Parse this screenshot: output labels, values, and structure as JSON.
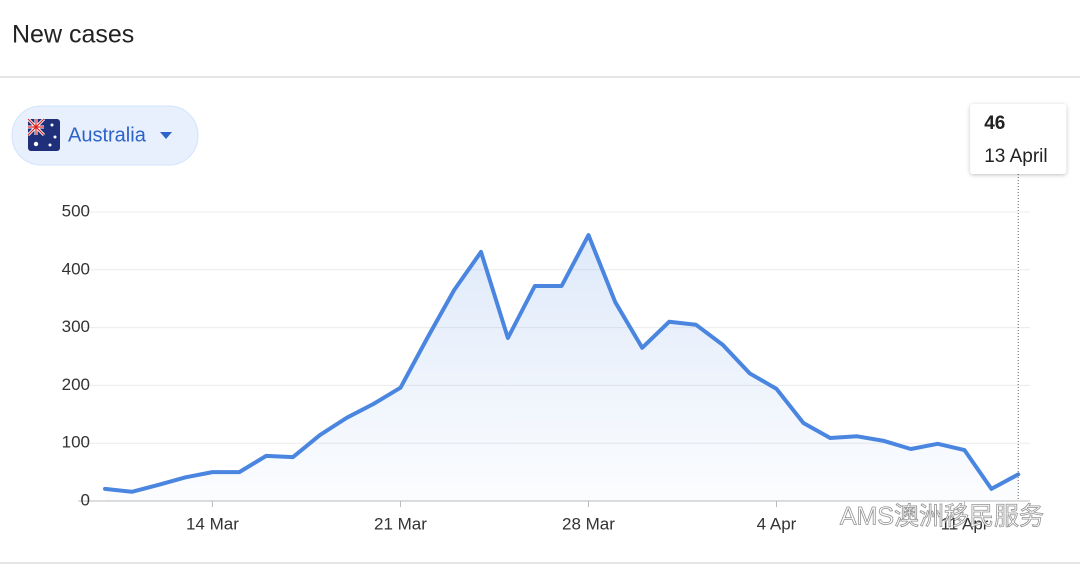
{
  "header": {
    "title": "New cases"
  },
  "selector": {
    "label": "Australia"
  },
  "chart_data": {
    "type": "line",
    "categories": [
      null,
      null,
      null,
      null,
      "14 Mar",
      null,
      null,
      null,
      null,
      null,
      null,
      "21 Mar",
      null,
      null,
      null,
      null,
      null,
      null,
      "28 Mar",
      null,
      null,
      null,
      null,
      null,
      null,
      "4 Apr",
      null,
      null,
      null,
      null,
      null,
      null,
      "11 Apr",
      null,
      null
    ],
    "values": [
      21,
      16,
      28,
      41,
      50,
      50,
      78,
      76,
      114,
      144,
      168,
      196,
      282,
      365,
      431,
      282,
      372,
      372,
      460,
      344,
      265,
      310,
      305,
      270,
      221,
      194,
      135,
      109,
      112,
      104,
      90,
      99,
      88,
      21,
      46
    ],
    "color": "#4a86e0",
    "ylim": [
      0,
      500
    ],
    "yticks": [
      0,
      100,
      200,
      300,
      400,
      500
    ],
    "grid": true,
    "tooltip_label": "13 April"
  },
  "watermark": "AMS澳洲移民服务"
}
